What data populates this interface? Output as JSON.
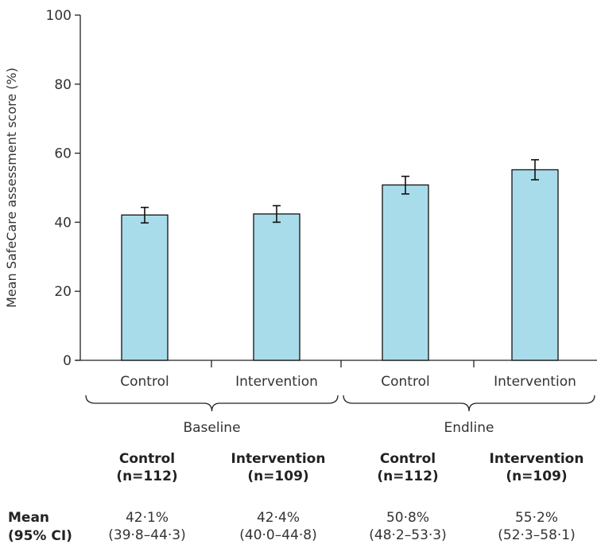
{
  "chart_data": {
    "type": "bar",
    "ylabel": "Mean SafeCare assessment score (%)",
    "ylim": [
      0,
      100
    ],
    "yticks": [
      0,
      20,
      40,
      60,
      80,
      100
    ],
    "grid": false,
    "categories": [
      "Control",
      "Intervention",
      "Control",
      "Intervention"
    ],
    "groups": [
      "Baseline",
      "Endline"
    ],
    "values": [
      42.1,
      42.4,
      50.8,
      55.2
    ],
    "ci_low": [
      39.8,
      40.0,
      48.2,
      52.3
    ],
    "ci_high": [
      44.3,
      44.8,
      53.3,
      58.1
    ],
    "bar_color": "#a9dcea",
    "bar_edge_color": "#111111"
  },
  "table": {
    "columns": [
      {
        "name": "Control",
        "n": "(n=112)"
      },
      {
        "name": "Intervention",
        "n": "(n=109)"
      },
      {
        "name": "Control",
        "n": "(n=112)"
      },
      {
        "name": "Intervention",
        "n": "(n=109)"
      }
    ],
    "row_label": {
      "line1": "Mean",
      "line2": "(95% CI)"
    },
    "means": [
      "42·1%",
      "42·4%",
      "50·8%",
      "55·2%"
    ],
    "cis": [
      "(39·8–44·3)",
      "(40·0–44·8)",
      "(48·2–53·3)",
      "(52·3–58·1)"
    ]
  }
}
